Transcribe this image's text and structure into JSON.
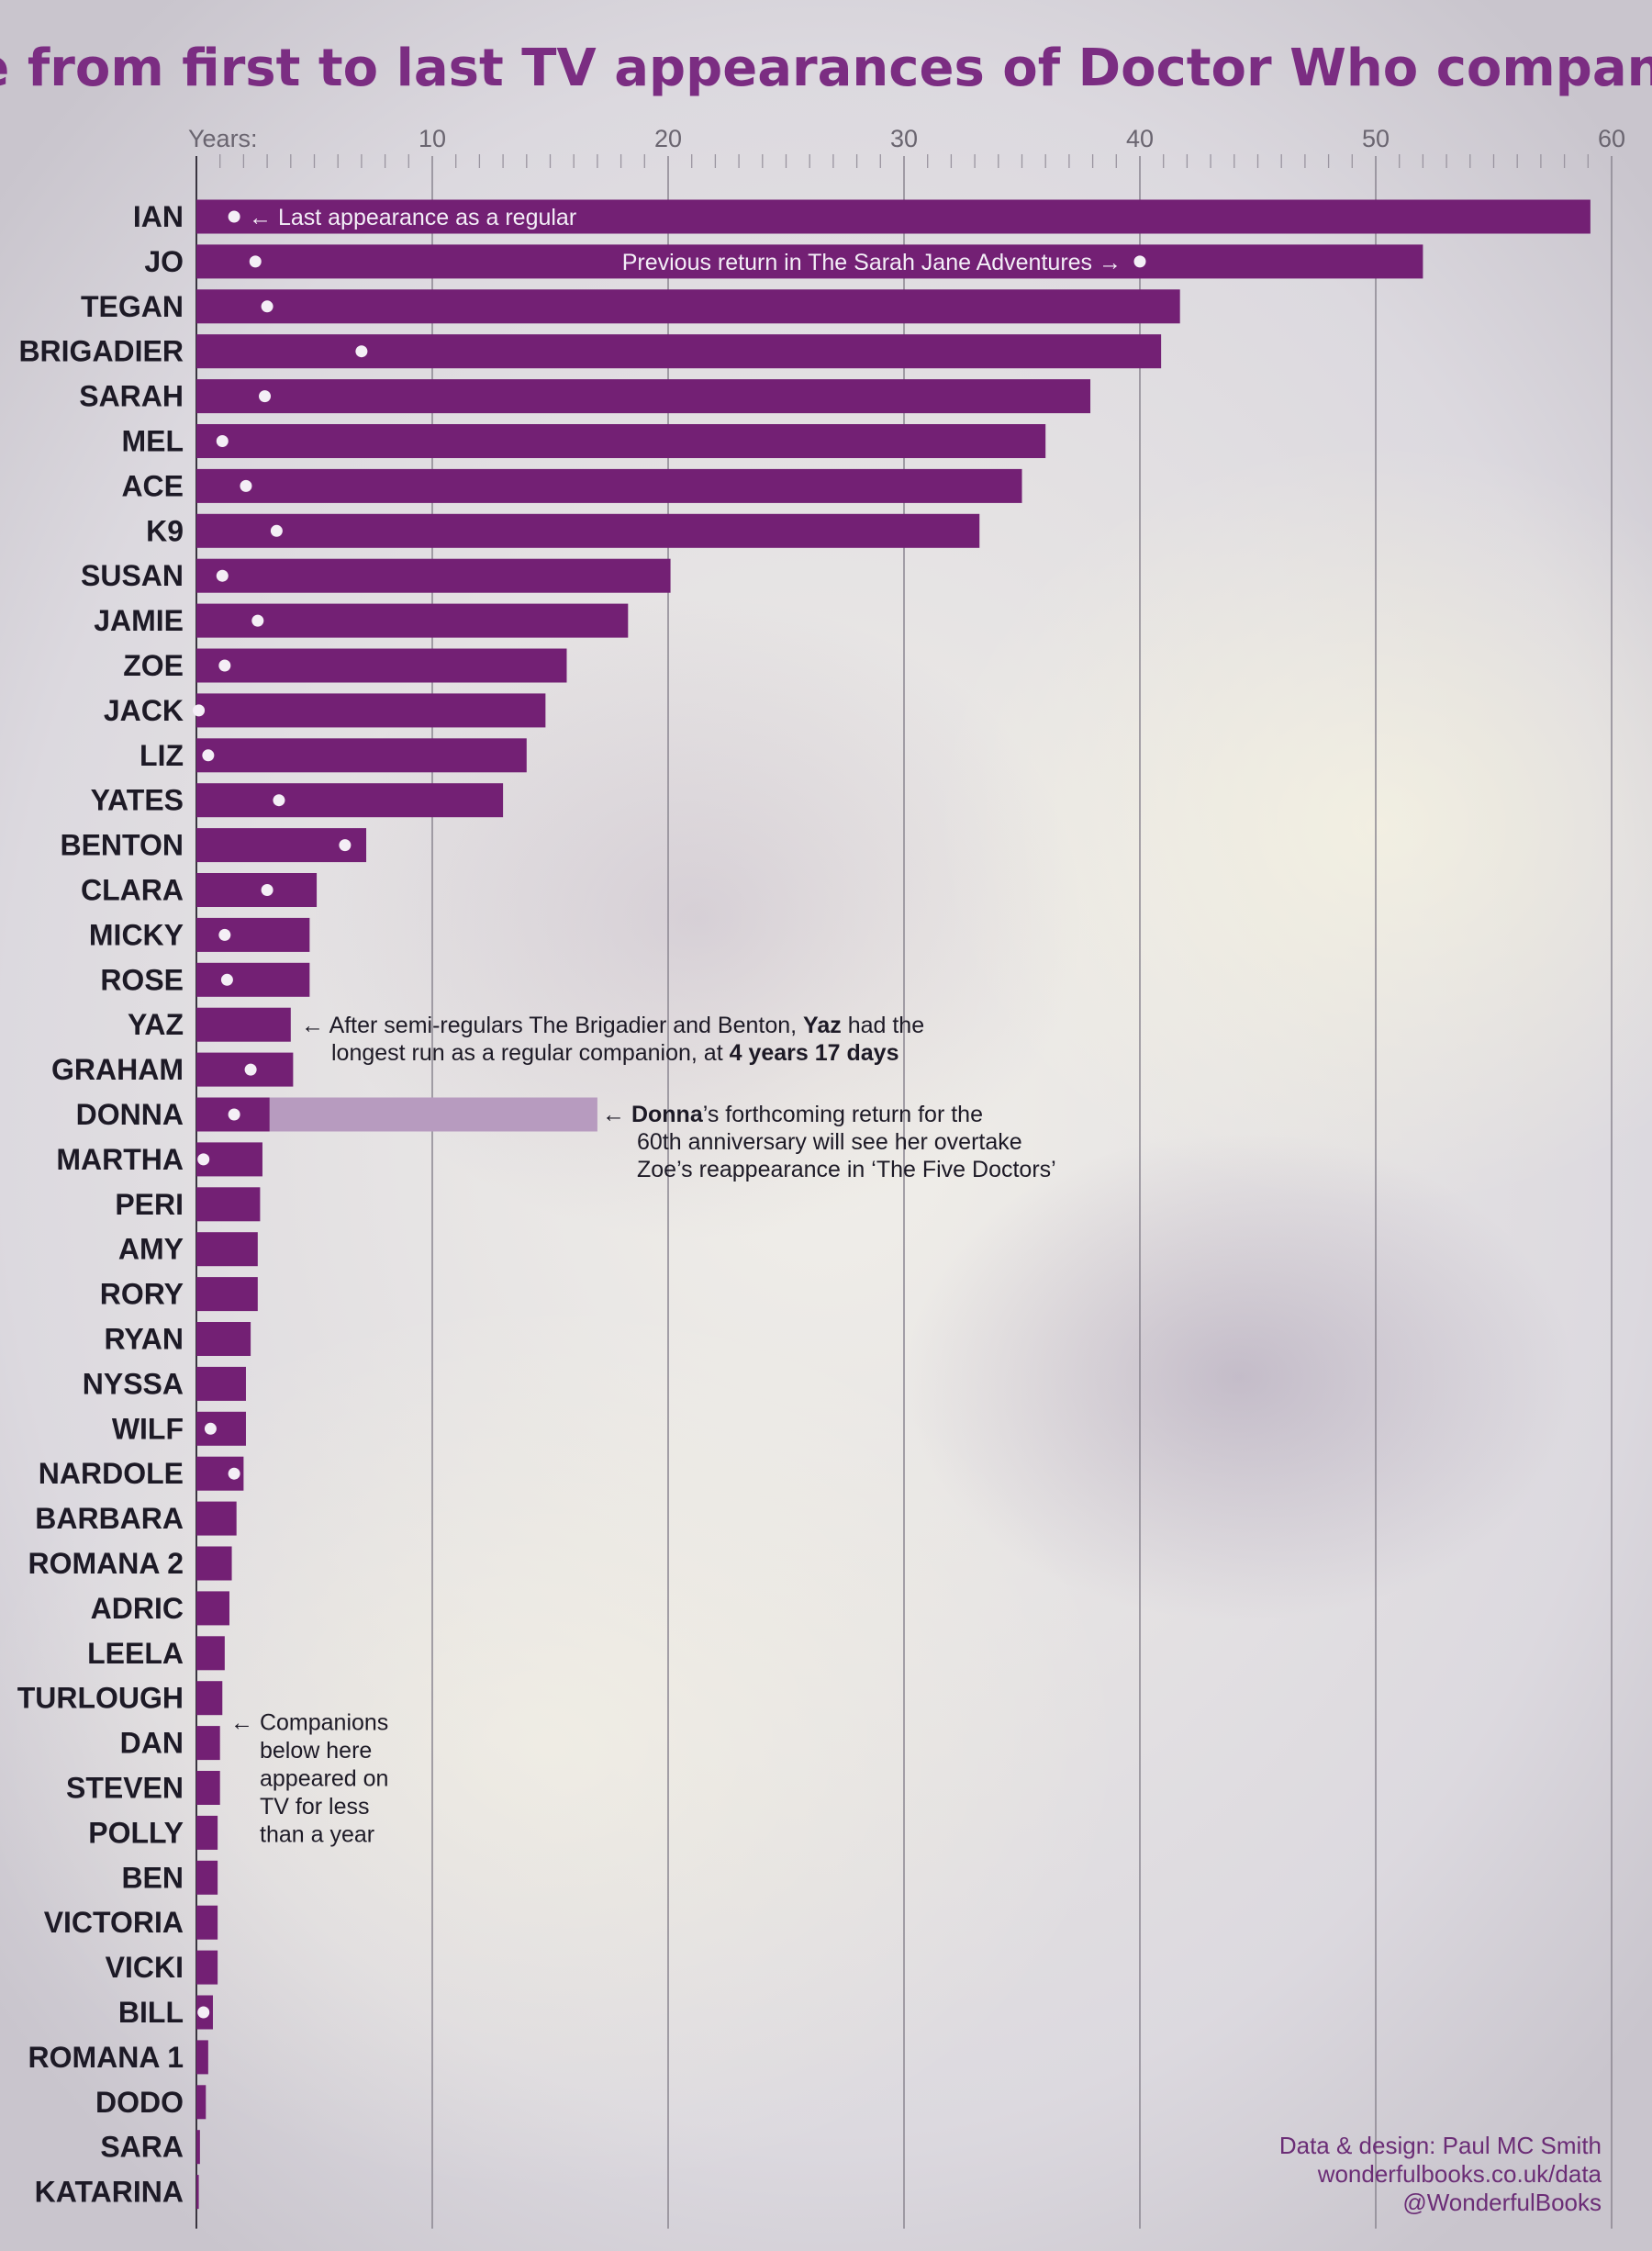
{
  "chart_data": {
    "type": "bar",
    "orientation": "horizontal",
    "title": "Time from first to last TV appearances of Doctor Who companions",
    "axis_label": "Years:",
    "xlim": [
      0,
      60
    ],
    "xticks": [
      10,
      20,
      30,
      40,
      50,
      60
    ],
    "grid": true,
    "colors": {
      "bar": "#732074",
      "marker": "#f4eff6",
      "future_extension": "#b79bbf",
      "title": "#7b2d82",
      "credits": "#6b2d76"
    },
    "series": [
      {
        "name": "Last appearance as a regular",
        "marker": "white-dot"
      },
      {
        "name": "Previous return in The Sarah Jane Adventures",
        "marker": "white-dot"
      }
    ],
    "categories": [
      "IAN",
      "JO",
      "TEGAN",
      "BRIGADIER",
      "SARAH",
      "MEL",
      "ACE",
      "K9",
      "SUSAN",
      "JAMIE",
      "ZOE",
      "JACK",
      "LIZ",
      "YATES",
      "BENTON",
      "CLARA",
      "MICKY",
      "ROSE",
      "YAZ",
      "GRAHAM",
      "DONNA",
      "MARTHA",
      "PERI",
      "AMY",
      "RORY",
      "RYAN",
      "NYSSA",
      "WILF",
      "NARDOLE",
      "BARBARA",
      "ROMANA 2",
      "ADRIC",
      "LEELA",
      "TURLOUGH",
      "DAN",
      "STEVEN",
      "POLLY",
      "BEN",
      "VICTORIA",
      "VICKI",
      "BILL",
      "ROMANA 1",
      "DODO",
      "SARA",
      "KATARINA"
    ],
    "values": [
      59.1,
      52.0,
      41.7,
      40.9,
      37.9,
      36.0,
      35.0,
      33.2,
      20.1,
      18.3,
      15.7,
      14.8,
      14.0,
      13.0,
      7.2,
      5.1,
      4.8,
      4.8,
      4.0,
      4.1,
      3.1,
      2.8,
      2.7,
      2.6,
      2.6,
      2.3,
      2.1,
      2.1,
      2.0,
      1.7,
      1.5,
      1.4,
      1.2,
      1.1,
      1.0,
      1.0,
      0.9,
      0.9,
      0.9,
      0.9,
      0.7,
      0.5,
      0.4,
      0.15,
      0.1
    ],
    "last_regular": [
      1.6,
      2.5,
      3.0,
      7.0,
      2.9,
      1.1,
      2.1,
      3.4,
      1.1,
      2.6,
      1.2,
      0.1,
      0.5,
      3.5,
      6.3,
      3.0,
      1.2,
      1.3,
      null,
      2.3,
      1.6,
      0.3,
      null,
      null,
      null,
      null,
      null,
      0.6,
      1.6,
      null,
      null,
      null,
      null,
      null,
      null,
      null,
      null,
      null,
      null,
      null,
      0.3,
      null,
      null,
      null,
      null
    ],
    "sja_return": {
      "category": "JO",
      "value": 40.0
    },
    "future_extension": {
      "category": "DONNA",
      "value": 17.0
    },
    "annotations": {
      "last_regular": "← Last appearance as a regular",
      "sja": "Previous return in The Sarah Jane Adventures →",
      "yaz_line1_pre": "← After semi-regulars The Brigadier and Benton, ",
      "yaz_line1_bold": "Yaz",
      "yaz_line1_post": " had the",
      "yaz_line2_pre": "longest run as a regular companion, at ",
      "yaz_line2_bold": "4 years 17 days",
      "donna_line1_pre": "← ",
      "donna_line1_bold": "Donna",
      "donna_line1_post": "’s forthcoming return for the",
      "donna_line2": "60th anniversary will see her overtake",
      "donna_line3": "Zoe’s reappearance in ‘The Five Doctors’",
      "less_year": [
        "← Companions",
        "below here",
        "appeared on",
        "TV for less",
        "than a year"
      ]
    }
  },
  "credits": {
    "line1": "Data & design: Paul MC Smith",
    "line2": "wonderfulbooks.co.uk/data",
    "line3": "@WonderfulBooks"
  }
}
